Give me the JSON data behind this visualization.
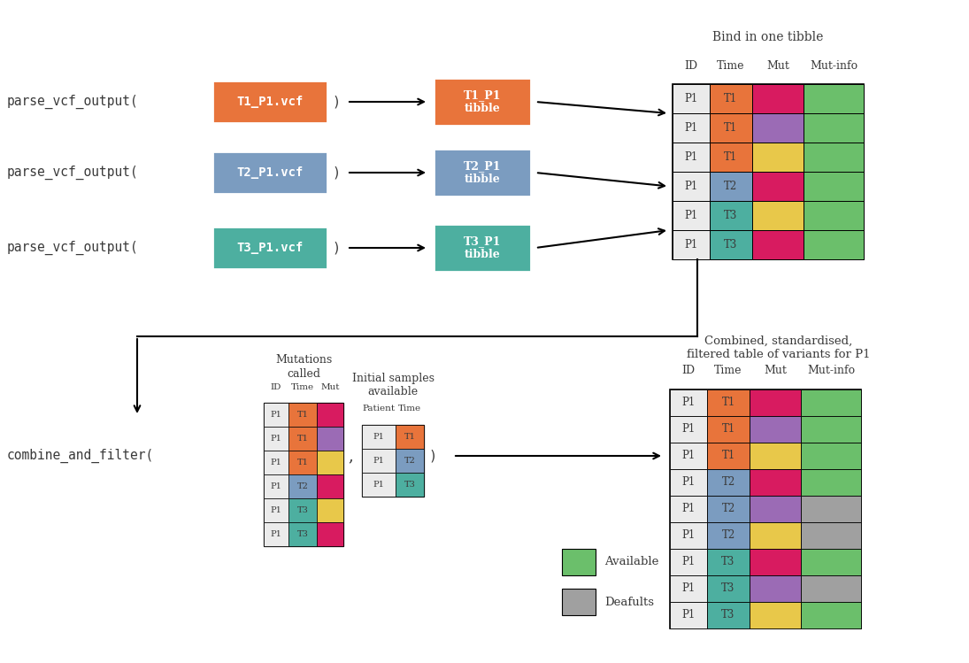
{
  "bg_color": "#ffffff",
  "text_color": "#3A3A3A",
  "vcf_colors": [
    "#E8743B",
    "#7B9CC0",
    "#4DAFA0"
  ],
  "vcf_labels": [
    "T1_P1.vcf",
    "T2_P1.vcf",
    "T3_P1.vcf"
  ],
  "tibble_labels": [
    "T1_P1\ntibble",
    "T2_P1\ntibble",
    "T3_P1\ntibble"
  ],
  "top_table_title": "Bind in one tibble",
  "top_table_cols": [
    "ID",
    "Time",
    "Mut",
    "Mut-info"
  ],
  "top_table_rows": [
    [
      "P1",
      "T1",
      "pink",
      "green"
    ],
    [
      "P1",
      "T1",
      "purple",
      "green"
    ],
    [
      "P1",
      "T1",
      "yellow",
      "green"
    ],
    [
      "P1",
      "T2",
      "pink",
      "green"
    ],
    [
      "P1",
      "T3",
      "yellow",
      "green"
    ],
    [
      "P1",
      "T3",
      "pink",
      "green"
    ]
  ],
  "top_time_colors": [
    "#E8743B",
    "#E8743B",
    "#E8743B",
    "#7B9CC0",
    "#4DAFA0",
    "#4DAFA0"
  ],
  "bottom_table_title": "Combined, standardised,\nfiltered table of variants for P1",
  "bottom_table_cols": [
    "ID",
    "Time",
    "Mut",
    "Mut-info"
  ],
  "bottom_table_rows": [
    [
      "P1",
      "T1",
      "pink",
      "green"
    ],
    [
      "P1",
      "T1",
      "purple",
      "green"
    ],
    [
      "P1",
      "T1",
      "yellow",
      "green"
    ],
    [
      "P1",
      "T2",
      "pink",
      "green"
    ],
    [
      "P1",
      "T2",
      "purple",
      "gray"
    ],
    [
      "P1",
      "T2",
      "yellow",
      "gray"
    ],
    [
      "P1",
      "T3",
      "pink",
      "green"
    ],
    [
      "P1",
      "T3",
      "purple",
      "gray"
    ],
    [
      "P1",
      "T3",
      "yellow",
      "green"
    ]
  ],
  "bottom_time_colors": [
    "#E8743B",
    "#E8743B",
    "#E8743B",
    "#7B9CC0",
    "#7B9CC0",
    "#7B9CC0",
    "#4DAFA0",
    "#4DAFA0",
    "#4DAFA0"
  ],
  "small_table_cols": [
    "ID",
    "Time",
    "Mut"
  ],
  "small_table_rows": [
    [
      "P1",
      "T1",
      "pink"
    ],
    [
      "P1",
      "T1",
      "purple"
    ],
    [
      "P1",
      "T1",
      "yellow"
    ],
    [
      "P1",
      "T2",
      "pink"
    ],
    [
      "P1",
      "T3",
      "yellow"
    ],
    [
      "P1",
      "T3",
      "pink"
    ]
  ],
  "small_time_colors": [
    "#E8743B",
    "#E8743B",
    "#E8743B",
    "#7B9CC0",
    "#4DAFA0",
    "#4DAFA0"
  ],
  "samples_table_cols": [
    "Patient",
    "Time"
  ],
  "samples_table_rows": [
    [
      "P1",
      "T1"
    ],
    [
      "P1",
      "T2"
    ],
    [
      "P1",
      "T3"
    ]
  ],
  "samples_time_colors": [
    "#E8743B",
    "#7B9CC0",
    "#4DAFA0"
  ],
  "legend_available": "Available",
  "legend_defaults": "Deafults",
  "color_map": {
    "pink": "#D81B60",
    "purple": "#9B6BB5",
    "yellow": "#E8C84A",
    "green": "#6BBF6B",
    "gray": "#A0A0A0"
  }
}
